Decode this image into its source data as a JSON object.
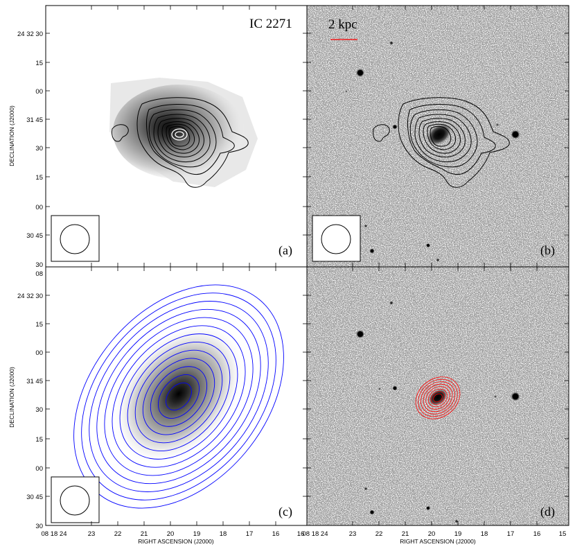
{
  "figure": {
    "galaxy_name": "IC 2271",
    "scale_bar_label": "2 kpc",
    "panels": [
      {
        "id": "a",
        "label": "(a)"
      },
      {
        "id": "b",
        "label": "(b)"
      },
      {
        "id": "c",
        "label": "(c)"
      },
      {
        "id": "d",
        "label": "(d)"
      }
    ],
    "y_axis": {
      "label": "DECLINATION (J2000)",
      "top_ticks": [
        "24 32 30",
        "15",
        "00",
        "31 45",
        "30",
        "15",
        "00",
        "30 45",
        "30"
      ],
      "bottom_ticks": [
        "08",
        "24 32 30",
        "15",
        "00",
        "31 45",
        "30",
        "15",
        "00",
        "30 45",
        "30"
      ]
    },
    "x_axis": {
      "label": "RIGHT ASCENSION (J2000)",
      "left_ticks": [
        "08 18 24",
        "23",
        "22",
        "21",
        "20",
        "19",
        "18",
        "17",
        "16",
        "16"
      ],
      "right_ticks": [
        "08 18 24",
        "23",
        "22",
        "21",
        "20",
        "19",
        "18",
        "17",
        "16",
        "15"
      ]
    },
    "colors": {
      "panel_a_b_contours": "#000000",
      "panel_a_peak_contour": "#ffffff",
      "panel_c_contours": "#0000ff",
      "panel_d_contours": "#ff0000",
      "scale_bar": "#ff0000"
    }
  }
}
